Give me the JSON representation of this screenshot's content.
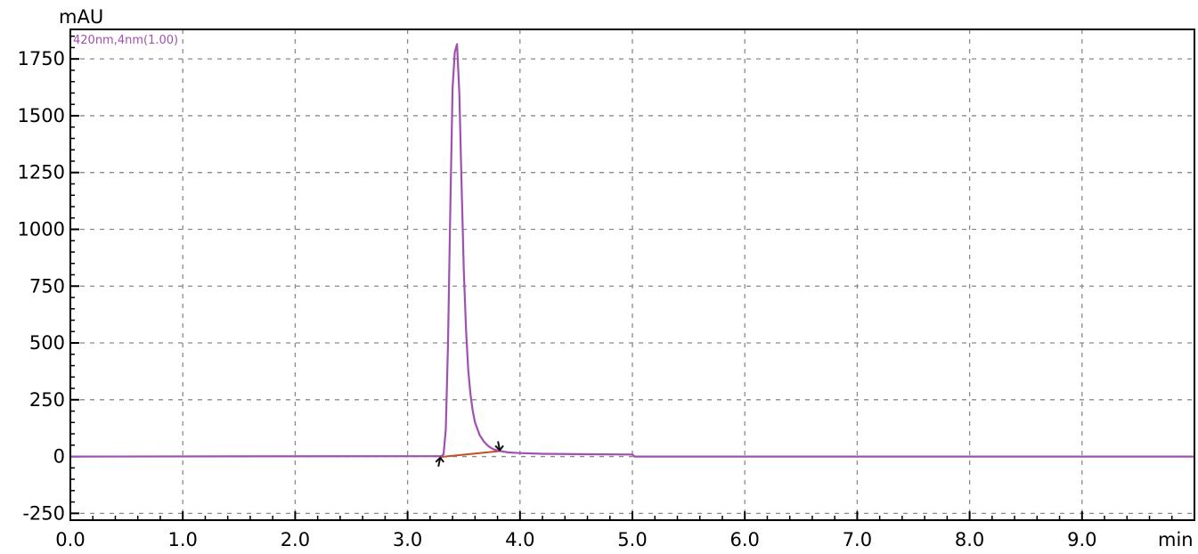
{
  "chart_data": {
    "type": "line",
    "ylabel": "mAU",
    "xlabel": "min",
    "xlim": [
      0.0,
      10.0
    ],
    "ylim": [
      -280,
      1880
    ],
    "x_ticks": [
      0.0,
      1.0,
      2.0,
      3.0,
      4.0,
      5.0,
      6.0,
      7.0,
      8.0,
      9.0
    ],
    "x_tick_labels": [
      "0.0",
      "1.0",
      "2.0",
      "3.0",
      "4.0",
      "5.0",
      "6.0",
      "7.0",
      "8.0",
      "9.0"
    ],
    "y_ticks": [
      -250,
      0,
      250,
      500,
      750,
      1000,
      1250,
      1500,
      1750
    ],
    "y_tick_labels": [
      "-250",
      "0",
      "250",
      "500",
      "750",
      "1000",
      "1250",
      "1500",
      "1750"
    ],
    "grid": true,
    "series": [
      {
        "name": "420nm,4nm(1.00)",
        "color": "#a050b0",
        "x": [
          0.0,
          3.3,
          3.32,
          3.34,
          3.36,
          3.38,
          3.4,
          3.42,
          3.44,
          3.46,
          3.48,
          3.5,
          3.52,
          3.54,
          3.56,
          3.58,
          3.6,
          3.64,
          3.68,
          3.72,
          3.76,
          3.8,
          3.85,
          3.9,
          4.0,
          4.2,
          4.6,
          5.0,
          5.02,
          10.0
        ],
        "y": [
          0,
          2,
          10,
          120,
          500,
          1100,
          1620,
          1780,
          1815,
          1600,
          1200,
          820,
          560,
          380,
          270,
          200,
          150,
          95,
          65,
          45,
          33,
          27,
          22,
          18,
          15,
          12,
          10,
          9,
          0,
          0
        ]
      }
    ],
    "baseline": {
      "color": "#c05020",
      "x": [
        3.29,
        3.82
      ],
      "y": [
        -2,
        24
      ]
    },
    "integration_marks": [
      {
        "x": 3.29,
        "y": -5,
        "direction": "up"
      },
      {
        "x": 3.82,
        "y": 28,
        "direction": "down"
      }
    ]
  }
}
